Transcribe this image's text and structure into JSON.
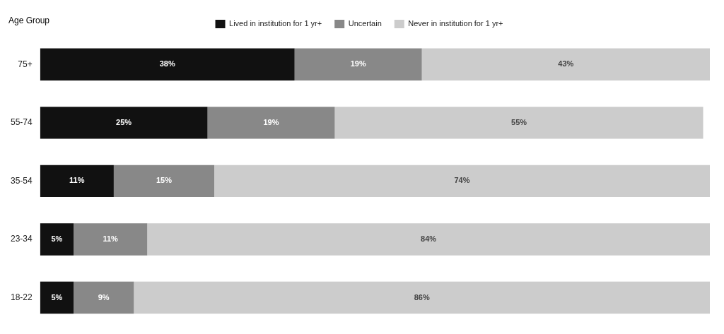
{
  "chart_data": {
    "type": "bar",
    "orientation": "horizontal",
    "stacked": true,
    "ylabel": "Age Group",
    "categories": [
      "18-22",
      "23-34",
      "35-54",
      "55-74",
      "75+"
    ],
    "series": [
      {
        "name": "Lived in institution for 1 yr+",
        "color": "#111111",
        "values": [
          5,
          5,
          11,
          25,
          38
        ],
        "value_labels": [
          "5%",
          "5%",
          "11%",
          "25%",
          "38%"
        ]
      },
      {
        "name": "Uncertain",
        "color": "#888888",
        "values": [
          9,
          11,
          15,
          19,
          19
        ],
        "value_labels": [
          "9%",
          "11%",
          "15%",
          "19%",
          "19%"
        ]
      },
      {
        "name": "Never in institution for 1 yr+",
        "color": "#cccccc",
        "values": [
          86,
          84,
          74,
          55,
          43
        ],
        "value_labels": [
          "86%",
          "84%",
          "74%",
          "55%",
          "43%"
        ]
      }
    ],
    "xlim": [
      0,
      100
    ],
    "grid": false,
    "legend": "top",
    "data_labels": true,
    "tick_labels": "y"
  }
}
